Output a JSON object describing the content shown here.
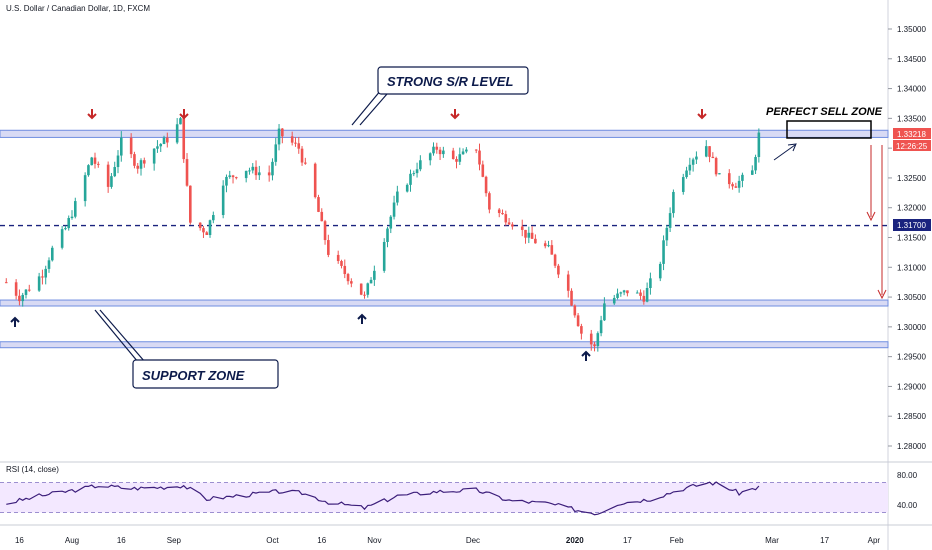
{
  "header": {
    "symbol": "U.S. Dollar / Canadian Dollar, 1D, FXCM",
    "rsi_label": "RSI (14, close)"
  },
  "annotations": {
    "resistance": "STRONG S/R LEVEL",
    "support": "SUPPORT ZONE",
    "sell": "PERFECT SELL ZONE"
  },
  "badges": {
    "price": "1.33218",
    "countdown": "12:26:25",
    "level": "1.31700"
  },
  "colors": {
    "up": "#26a69a",
    "down": "#ef5350",
    "zone_fill": "#c7cbef",
    "zone_stroke": "#6f8de0",
    "dashed_line": "#1a237e",
    "rsi_line": "#3b1d7a",
    "rsi_band": "#f3e8ff",
    "arrow_dark": "#0d1b4b",
    "arrow_red": "#c62828"
  },
  "chart_data": {
    "type": "candlestick",
    "y_axis": {
      "ticks": [
        "1.35000",
        "1.34500",
        "1.34000",
        "1.33500",
        "1.33000",
        "1.32500",
        "1.32000",
        "1.31500",
        "1.31000",
        "1.30500",
        "1.30000",
        "1.29500",
        "1.29000",
        "1.28500",
        "1.28000"
      ]
    },
    "x_axis": {
      "ticks": [
        "16",
        "Aug",
        "16",
        "Sep",
        "Oct",
        "16",
        "Nov",
        "Dec",
        "2020",
        "17",
        "Feb",
        "Mar",
        "17",
        "Apr"
      ]
    },
    "horizontal_level": 1.317,
    "resistance_zone": [
      1.3318,
      1.333
    ],
    "support_zones": [
      [
        1.3035,
        1.3045
      ],
      [
        1.2965,
        1.2975
      ]
    ],
    "close_path": [
      {
        "d": "2019-07-12",
        "c": 1.3075
      },
      {
        "d": "2019-07-16",
        "c": 1.305
      },
      {
        "d": "2019-07-19",
        "c": 1.3065
      },
      {
        "d": "2019-07-23",
        "c": 1.309
      },
      {
        "d": "2019-07-26",
        "c": 1.313
      },
      {
        "d": "2019-07-30",
        "c": 1.3165
      },
      {
        "d": "2019-08-02",
        "c": 1.3205
      },
      {
        "d": "2019-08-07",
        "c": 1.3285
      },
      {
        "d": "2019-08-12",
        "c": 1.3235
      },
      {
        "d": "2019-08-16",
        "c": 1.331
      },
      {
        "d": "2019-08-21",
        "c": 1.327
      },
      {
        "d": "2019-08-26",
        "c": 1.33
      },
      {
        "d": "2019-08-30",
        "c": 1.3315
      },
      {
        "d": "2019-09-03",
        "c": 1.3345
      },
      {
        "d": "2019-09-06",
        "c": 1.3175
      },
      {
        "d": "2019-09-11",
        "c": 1.316
      },
      {
        "d": "2019-09-16",
        "c": 1.3245
      },
      {
        "d": "2019-09-23",
        "c": 1.3265
      },
      {
        "d": "2019-09-30",
        "c": 1.3255
      },
      {
        "d": "2019-10-03",
        "c": 1.3325
      },
      {
        "d": "2019-10-09",
        "c": 1.33
      },
      {
        "d": "2019-10-14",
        "c": 1.3215
      },
      {
        "d": "2019-10-18",
        "c": 1.3125
      },
      {
        "d": "2019-10-23",
        "c": 1.309
      },
      {
        "d": "2019-10-29",
        "c": 1.305
      },
      {
        "d": "2019-11-04",
        "c": 1.315
      },
      {
        "d": "2019-11-08",
        "c": 1.322
      },
      {
        "d": "2019-11-14",
        "c": 1.327
      },
      {
        "d": "2019-11-20",
        "c": 1.33
      },
      {
        "d": "2019-11-25",
        "c": 1.328
      },
      {
        "d": "2019-12-02",
        "c": 1.33
      },
      {
        "d": "2019-12-06",
        "c": 1.32
      },
      {
        "d": "2019-12-12",
        "c": 1.318
      },
      {
        "d": "2019-12-18",
        "c": 1.315
      },
      {
        "d": "2019-12-24",
        "c": 1.313
      },
      {
        "d": "2019-12-30",
        "c": 1.306
      },
      {
        "d": "2020-01-03",
        "c": 1.299
      },
      {
        "d": "2020-01-07",
        "c": 1.2965
      },
      {
        "d": "2020-01-10",
        "c": 1.304
      },
      {
        "d": "2020-01-17",
        "c": 1.306
      },
      {
        "d": "2020-01-22",
        "c": 1.305
      },
      {
        "d": "2020-01-27",
        "c": 1.311
      },
      {
        "d": "2020-01-31",
        "c": 1.3225
      },
      {
        "d": "2020-02-05",
        "c": 1.328
      },
      {
        "d": "2020-02-10",
        "c": 1.3305
      },
      {
        "d": "2020-02-14",
        "c": 1.325
      },
      {
        "d": "2020-02-19",
        "c": 1.324
      },
      {
        "d": "2020-02-24",
        "c": 1.326
      },
      {
        "d": "2020-02-26",
        "c": 1.3322
      }
    ],
    "rsi": {
      "levels": [
        80,
        70,
        40,
        30
      ],
      "values": [
        {
          "d": "2019-07-12",
          "v": 42
        },
        {
          "d": "2019-07-22",
          "v": 52
        },
        {
          "d": "2019-08-02",
          "v": 60
        },
        {
          "d": "2019-08-09",
          "v": 66
        },
        {
          "d": "2019-08-19",
          "v": 62
        },
        {
          "d": "2019-08-30",
          "v": 64
        },
        {
          "d": "2019-09-04",
          "v": 66
        },
        {
          "d": "2019-09-11",
          "v": 48
        },
        {
          "d": "2019-09-20",
          "v": 52
        },
        {
          "d": "2019-10-03",
          "v": 58
        },
        {
          "d": "2019-10-10",
          "v": 56
        },
        {
          "d": "2019-10-18",
          "v": 44
        },
        {
          "d": "2019-10-29",
          "v": 36
        },
        {
          "d": "2019-11-08",
          "v": 52
        },
        {
          "d": "2019-11-20",
          "v": 58
        },
        {
          "d": "2019-12-02",
          "v": 60
        },
        {
          "d": "2019-12-12",
          "v": 46
        },
        {
          "d": "2019-12-24",
          "v": 42
        },
        {
          "d": "2020-01-03",
          "v": 32
        },
        {
          "d": "2020-01-08",
          "v": 29
        },
        {
          "d": "2020-01-14",
          "v": 42
        },
        {
          "d": "2020-01-24",
          "v": 48
        },
        {
          "d": "2020-02-03",
          "v": 62
        },
        {
          "d": "2020-02-11",
          "v": 70
        },
        {
          "d": "2020-02-14",
          "v": 68
        },
        {
          "d": "2020-02-20",
          "v": 56
        },
        {
          "d": "2020-02-26",
          "v": 64
        }
      ]
    }
  }
}
